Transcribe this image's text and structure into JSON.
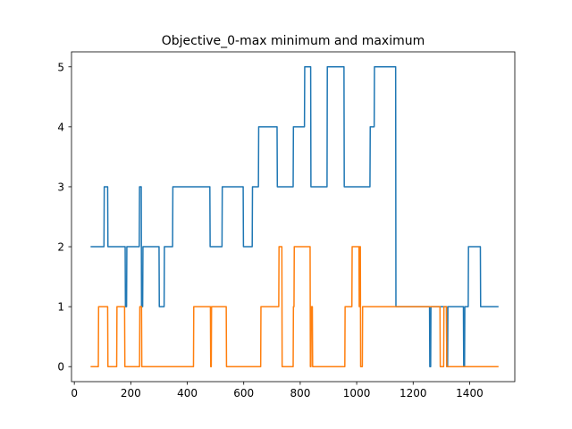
{
  "chart_data": {
    "type": "line",
    "title": "Objective_0-max minimum and maximum",
    "xlabel": "",
    "ylabel": "",
    "xlim": [
      -10,
      1560
    ],
    "ylim": [
      -0.25,
      5.25
    ],
    "xticks": [
      0,
      200,
      400,
      600,
      800,
      1000,
      1200,
      1400
    ],
    "yticks": [
      0,
      1,
      2,
      3,
      4,
      5
    ],
    "grid": false,
    "legend": "none",
    "series": [
      {
        "color": "#1f77b4",
        "x": [
          60,
          105,
          106,
          118,
          119,
          180,
          181,
          185,
          186,
          230,
          231,
          237,
          238,
          242,
          243,
          258,
          259,
          300,
          301,
          318,
          319,
          348,
          349,
          480,
          481,
          523,
          524,
          598,
          599,
          630,
          631,
          652,
          653,
          718,
          719,
          775,
          776,
          815,
          816,
          837,
          838,
          895,
          896,
          955,
          956,
          1047,
          1048,
          1062,
          1063,
          1138,
          1139,
          1258,
          1259,
          1262,
          1263,
          1318,
          1319,
          1322,
          1323,
          1378,
          1379,
          1382,
          1383,
          1395,
          1396,
          1438,
          1439,
          1500
        ],
        "y": [
          2,
          2,
          3,
          3,
          2,
          2,
          1,
          1,
          2,
          2,
          3,
          3,
          1,
          1,
          2,
          2,
          2,
          2,
          1,
          1,
          2,
          2,
          3,
          3,
          2,
          2,
          3,
          3,
          2,
          2,
          3,
          3,
          4,
          4,
          3,
          3,
          4,
          4,
          5,
          5,
          3,
          3,
          5,
          5,
          3,
          3,
          4,
          4,
          5,
          5,
          1,
          1,
          0,
          0,
          1,
          1,
          0,
          0,
          1,
          1,
          0,
          0,
          1,
          1,
          2,
          2,
          1,
          1
        ]
      },
      {
        "color": "#ff7f0e",
        "x": [
          60,
          85,
          86,
          118,
          119,
          150,
          151,
          178,
          179,
          231,
          232,
          238,
          239,
          422,
          423,
          482,
          483,
          485,
          486,
          538,
          539,
          660,
          661,
          724,
          725,
          735,
          736,
          775,
          776,
          778,
          779,
          835,
          836,
          838,
          839,
          843,
          844,
          958,
          959,
          983,
          984,
          1008,
          1009,
          1010,
          1011,
          1013,
          1014,
          1020,
          1021,
          1295,
          1296,
          1308,
          1309,
          1318,
          1319,
          1500
        ],
        "y": [
          0,
          0,
          1,
          1,
          0,
          0,
          1,
          1,
          0,
          0,
          1,
          1,
          0,
          0,
          1,
          1,
          0,
          0,
          1,
          1,
          0,
          0,
          1,
          1,
          2,
          2,
          0,
          0,
          1,
          1,
          2,
          2,
          0,
          0,
          1,
          1,
          0,
          0,
          1,
          1,
          2,
          2,
          1,
          1,
          2,
          2,
          0,
          0,
          1,
          1,
          0,
          0,
          1,
          1,
          0,
          0
        ]
      }
    ]
  }
}
